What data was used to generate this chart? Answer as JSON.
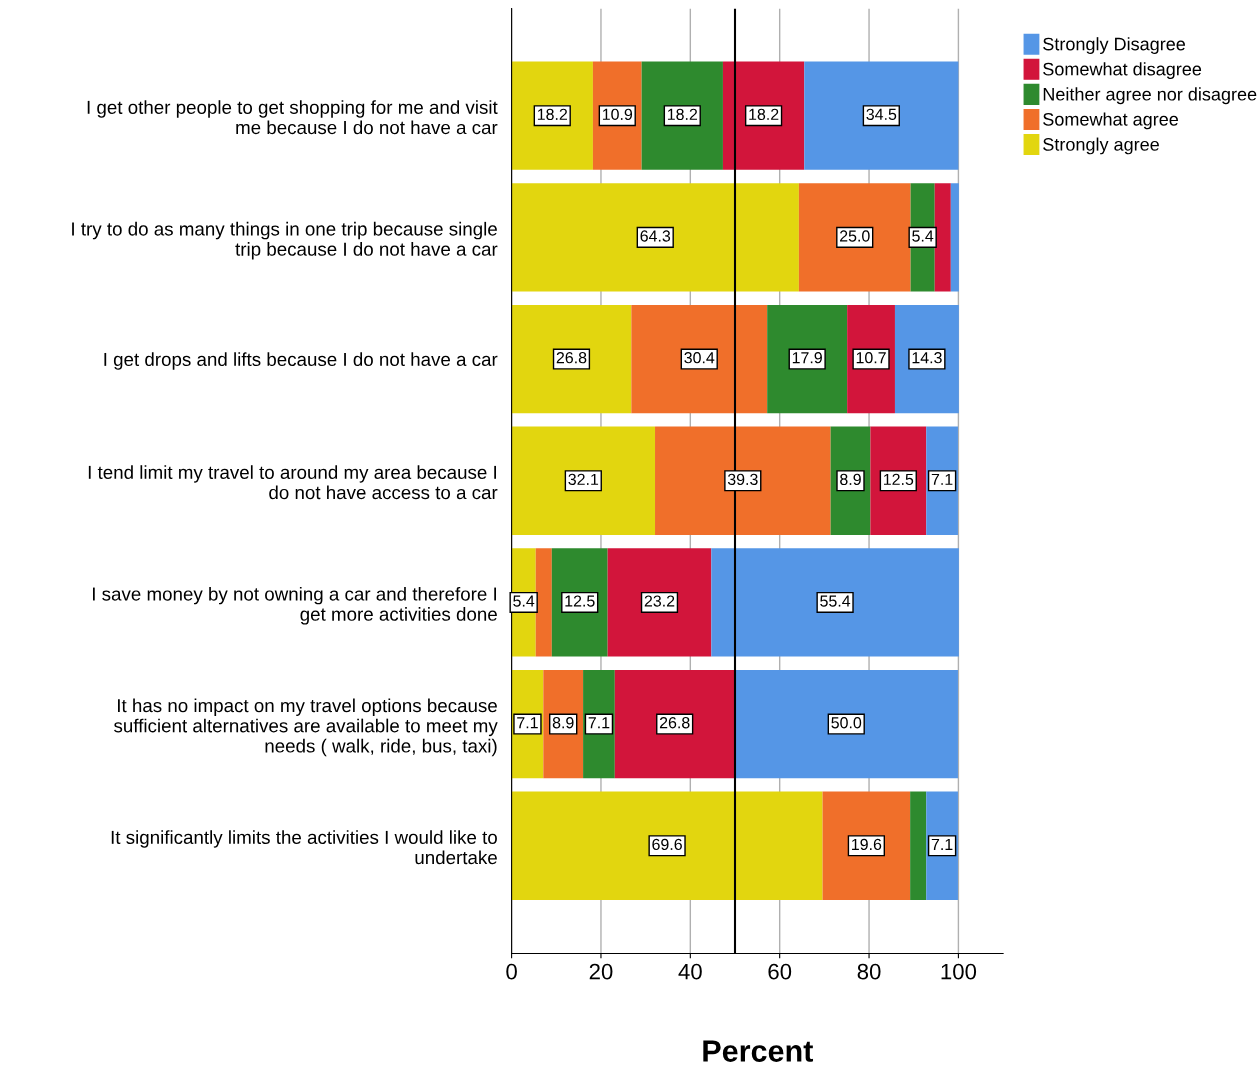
{
  "chart_data": {
    "type": "bar",
    "orientation": "horizontal",
    "stacked": true,
    "xlabel": "Percent",
    "categories": [
      "I get other people to get shopping for me and visit\nme because I do not have a car",
      "I try to do as many things in one trip because single\ntrip because I do not have a car",
      "I get drops and lifts because I do not have a car",
      "I tend limit my travel to around my area because I\ndo not have access to a car",
      "I save money by not owning a car and therefore I\nget more activities done",
      "It has no impact on my travel options because\nsufficient alternatives are available to meet my\nneeds ( walk, ride, bus, taxi)",
      "It significantly limits the activities I would like to\nundertake"
    ],
    "series": [
      {
        "name": "Strongly agree",
        "color": "#e2d60f",
        "values": [
          18.2,
          64.3,
          26.8,
          32.1,
          5.4,
          7.1,
          69.6
        ],
        "value_labels": [
          "18.2",
          "64.3",
          "26.8",
          "32.1",
          "5.4",
          "7.1",
          "69.6"
        ]
      },
      {
        "name": "Somewhat agree",
        "color": "#f06f2a",
        "values": [
          10.9,
          25.0,
          30.4,
          39.3,
          3.6,
          8.9,
          19.6
        ],
        "value_labels": [
          "10.9",
          "25.0",
          "30.4",
          "39.3",
          null,
          "8.9",
          "19.6"
        ]
      },
      {
        "name": "Neither agree nor disagree",
        "color": "#2e8a2e",
        "values": [
          18.2,
          5.4,
          17.9,
          8.9,
          12.5,
          7.1,
          3.6
        ],
        "value_labels": [
          "18.2",
          "5.4",
          "17.9",
          "8.9",
          "12.5",
          "7.1",
          null
        ]
      },
      {
        "name": "Somewhat disagree",
        "color": "#d2153b",
        "values": [
          18.2,
          3.6,
          10.7,
          12.5,
          23.2,
          26.8,
          null
        ],
        "value_labels": [
          "18.2",
          null,
          "10.7",
          "12.5",
          "23.2",
          "26.8",
          null
        ]
      },
      {
        "name": "Strongly Disagree",
        "color": "#5596e6",
        "values": [
          34.5,
          1.8,
          14.3,
          7.1,
          55.4,
          50.0,
          7.1
        ],
        "value_labels": [
          "34.5",
          null,
          "14.3",
          "7.1",
          "55.4",
          "50.0",
          "7.1"
        ]
      }
    ],
    "xlim": [
      0,
      110
    ],
    "xticks": [
      0,
      20,
      40,
      60,
      80,
      100
    ],
    "grid": "x",
    "legend": "right",
    "ref_lines": [
      {
        "axis": "x",
        "value": 50,
        "color": "#000000"
      }
    ]
  }
}
